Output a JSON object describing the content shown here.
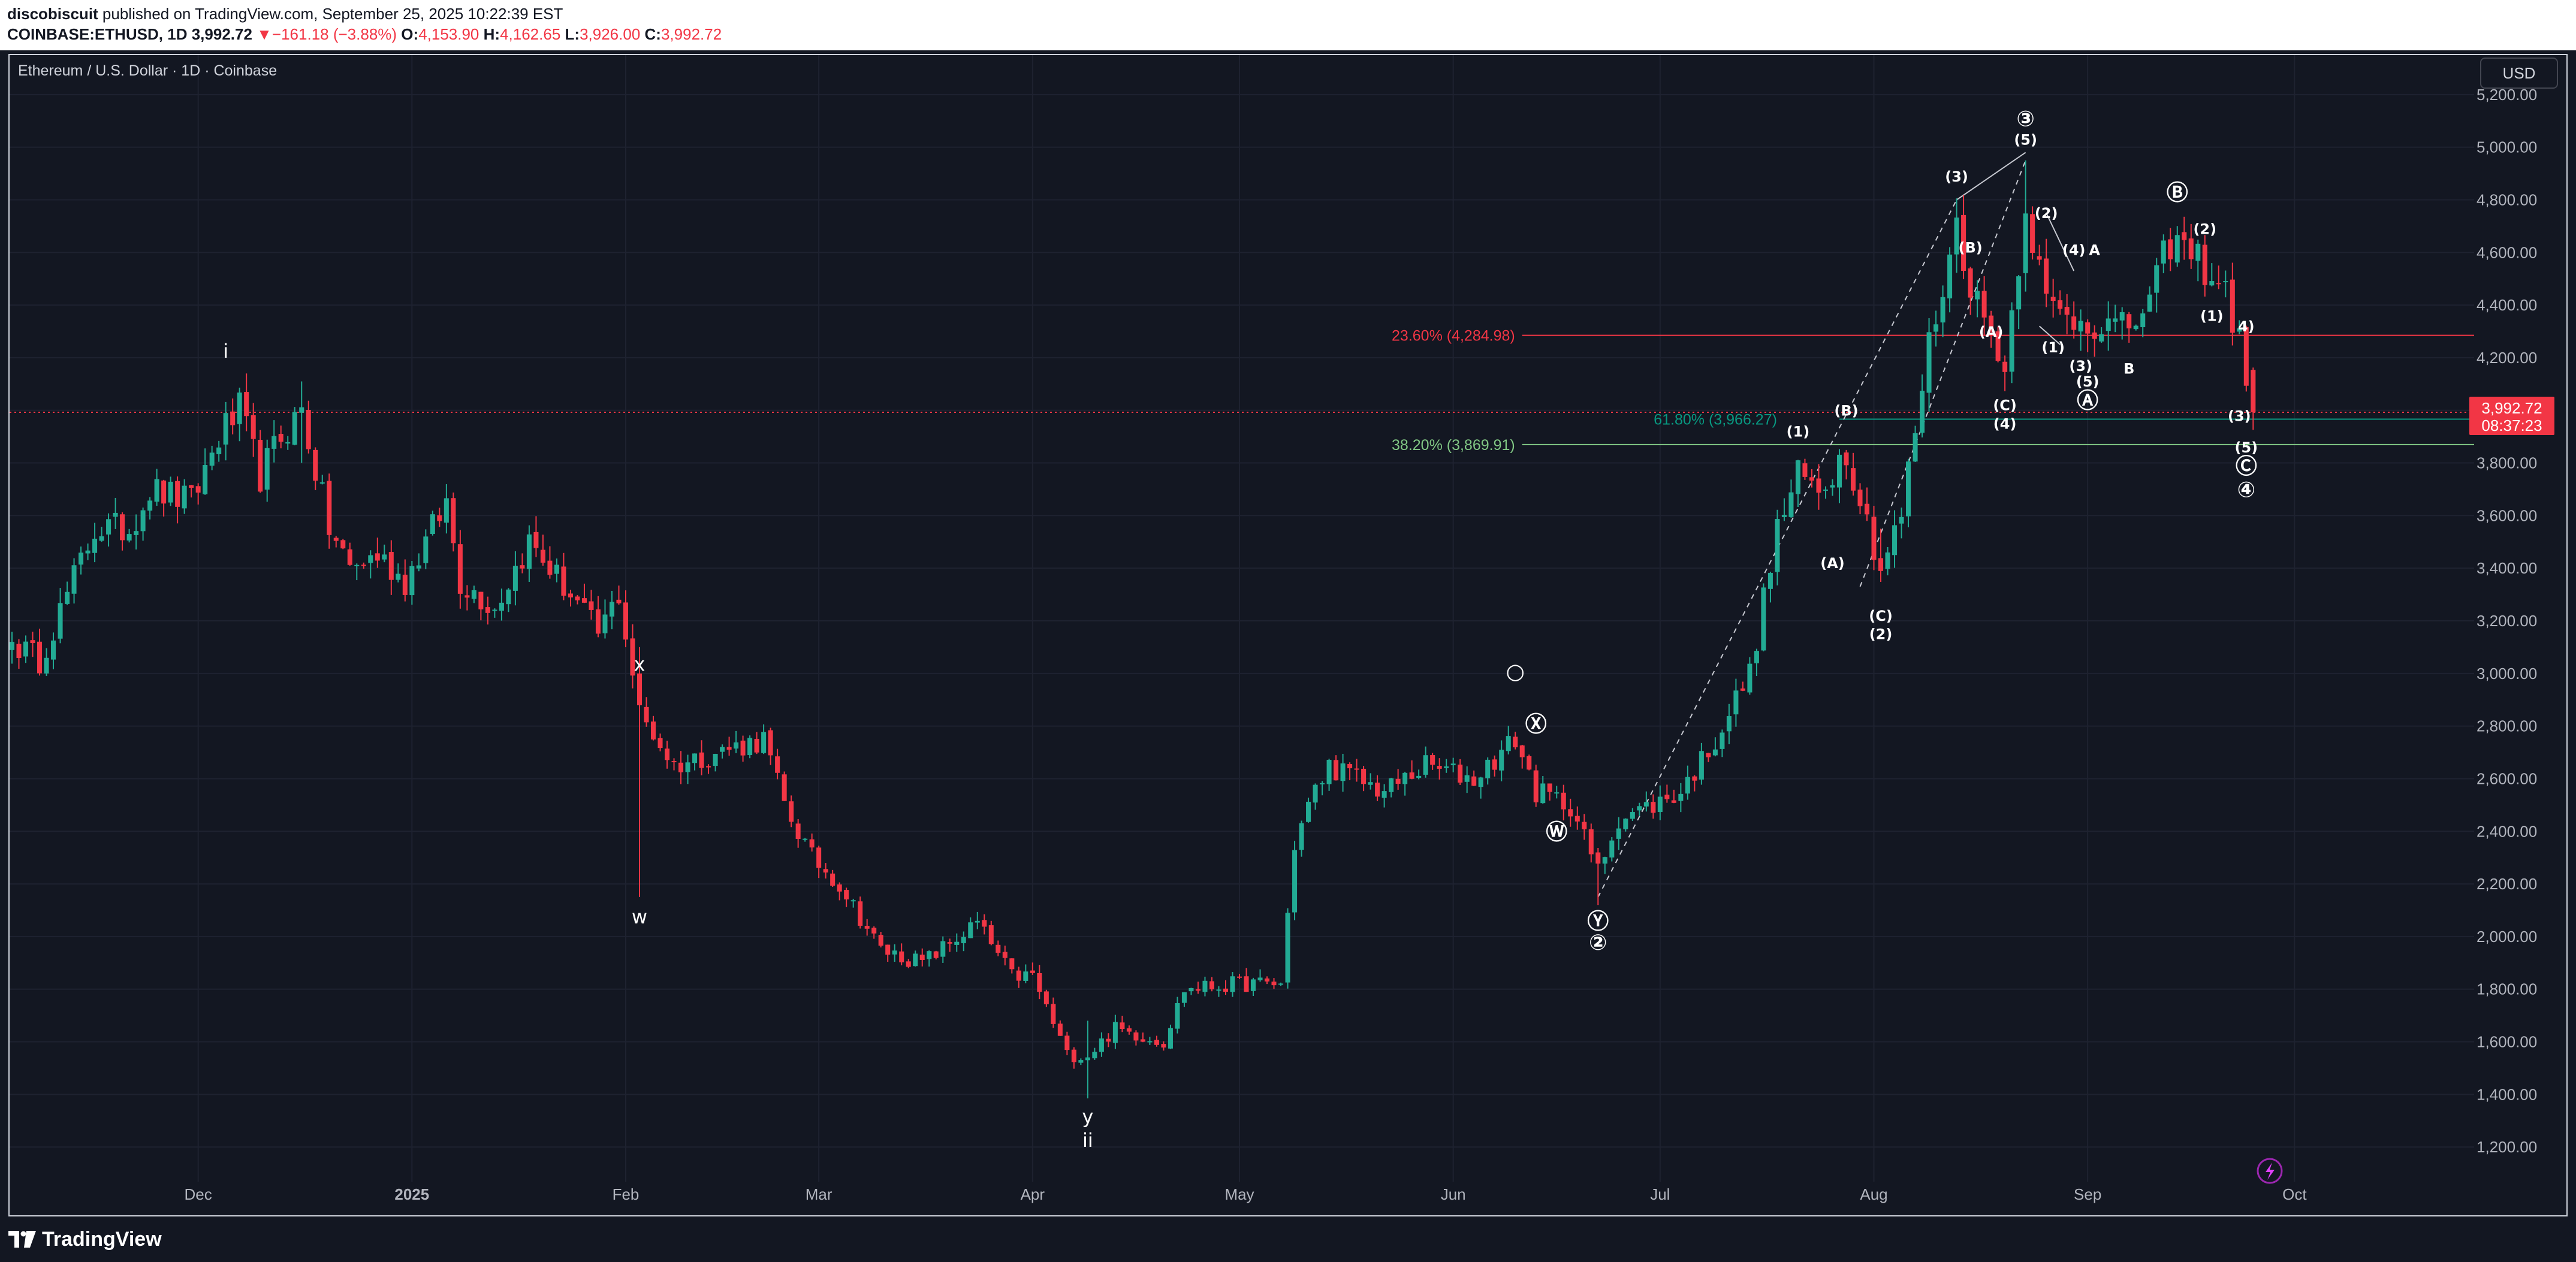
{
  "header": {
    "author": "discobiscuit",
    "published": " published on TradingView.com, September 25, 2025 10:22:39 EST",
    "symbol_line": "COINBASE:ETHUSD, 1D",
    "last": "3,992.72",
    "change_arrow": "▼",
    "change": "−161.18 (−3.88%)",
    "o_label": "O:",
    "o": "4,153.90",
    "h_label": "H:",
    "h": "4,162.65",
    "l_label": "L:",
    "l": "3,926.00",
    "c_label": "C:",
    "c": "3,992.72"
  },
  "chart_title": "Ethereum / U.S. Dollar · 1D · Coinbase",
  "currency_button": "USD",
  "brand": "TradingView",
  "colors": {
    "background": "#131722",
    "up": "#22ab94",
    "down": "#f23645",
    "grid": "#1f2433",
    "text": "#b2b5be"
  },
  "chart_data": {
    "type": "candlestick",
    "title": "Ethereum / U.S. Dollar · 1D · Coinbase",
    "ylim": [
      1050,
      5350
    ],
    "xlim": [
      "2024-11-04",
      "2025-10-26"
    ],
    "y_ticks": [
      "1,200.00",
      "1,400.00",
      "1,600.00",
      "1,800.00",
      "2,000.00",
      "2,200.00",
      "2,400.00",
      "2,600.00",
      "2,800.00",
      "3,000.00",
      "3,200.00",
      "3,400.00",
      "3,600.00",
      "3,800.00",
      "4,000.00",
      "4,200.00",
      "4,400.00",
      "4,600.00",
      "4,800.00",
      "5,000.00",
      "5,200.00"
    ],
    "x_ticks": [
      {
        "date": "2024-12-01",
        "label": "Dec"
      },
      {
        "date": "2025-01-01",
        "label": "2025"
      },
      {
        "date": "2025-02-01",
        "label": "Feb"
      },
      {
        "date": "2025-03-01",
        "label": "Mar"
      },
      {
        "date": "2025-04-01",
        "label": "Apr"
      },
      {
        "date": "2025-05-01",
        "label": "May"
      },
      {
        "date": "2025-06-01",
        "label": "Jun"
      },
      {
        "date": "2025-07-01",
        "label": "Jul"
      },
      {
        "date": "2025-08-01",
        "label": "Aug"
      },
      {
        "date": "2025-09-01",
        "label": "Sep"
      },
      {
        "date": "2025-10-01",
        "label": "Oct"
      }
    ],
    "start_date": "2024-11-04",
    "anchors": [
      [
        "2024-11-04",
        3120
      ],
      [
        "2024-11-08",
        3050
      ],
      [
        "2024-11-12",
        3300
      ],
      [
        "2024-11-16",
        3550
      ],
      [
        "2024-11-21",
        3550
      ],
      [
        "2024-11-24",
        3700
      ],
      [
        "2024-11-30",
        3650
      ],
      [
        "2024-12-04",
        3900
      ],
      [
        "2024-12-07",
        4000
      ],
      [
        "2024-12-10",
        3750
      ],
      [
        "2024-12-13",
        3900
      ],
      [
        "2024-12-16",
        4000
      ],
      [
        "2024-12-20",
        3550
      ],
      [
        "2024-12-23",
        3400
      ],
      [
        "2024-12-27",
        3450
      ],
      [
        "2024-12-31",
        3350
      ],
      [
        "2025-01-06",
        3650
      ],
      [
        "2025-01-08",
        3350
      ],
      [
        "2025-01-13",
        3250
      ],
      [
        "2025-01-18",
        3500
      ],
      [
        "2025-01-24",
        3300
      ],
      [
        "2025-01-28",
        3150
      ],
      [
        "2025-01-31",
        3300
      ],
      [
        "2025-02-03",
        2850
      ],
      [
        "2025-02-08",
        2650
      ],
      [
        "2025-02-14",
        2700
      ],
      [
        "2025-02-21",
        2750
      ],
      [
        "2025-02-24",
        2500
      ],
      [
        "2025-02-28",
        2300
      ],
      [
        "2025-03-04",
        2200
      ],
      [
        "2025-03-10",
        1950
      ],
      [
        "2025-03-16",
        1900
      ],
      [
        "2025-03-24",
        2050
      ],
      [
        "2025-03-29",
        1850
      ],
      [
        "2025-04-01",
        1850
      ],
      [
        "2025-04-06",
        1550
      ],
      [
        "2025-04-09",
        1550
      ],
      [
        "2025-04-13",
        1650
      ],
      [
        "2025-04-20",
        1600
      ],
      [
        "2025-04-23",
        1800
      ],
      [
        "2025-05-01",
        1820
      ],
      [
        "2025-05-07",
        1820
      ],
      [
        "2025-05-09",
        2350
      ],
      [
        "2025-05-11",
        2500
      ],
      [
        "2025-05-14",
        2650
      ],
      [
        "2025-05-22",
        2550
      ],
      [
        "2025-05-28",
        2650
      ],
      [
        "2025-06-04",
        2600
      ],
      [
        "2025-06-10",
        2750
      ],
      [
        "2025-06-13",
        2550
      ],
      [
        "2025-06-18",
        2500
      ],
      [
        "2025-06-22",
        2250
      ],
      [
        "2025-06-25",
        2450
      ],
      [
        "2025-06-30",
        2500
      ],
      [
        "2025-07-04",
        2550
      ],
      [
        "2025-07-09",
        2750
      ],
      [
        "2025-07-14",
        3000
      ],
      [
        "2025-07-18",
        3550
      ],
      [
        "2025-07-21",
        3750
      ],
      [
        "2025-07-24",
        3700
      ],
      [
        "2025-07-28",
        3850
      ],
      [
        "2025-08-02",
        3400
      ],
      [
        "2025-08-05",
        3600
      ],
      [
        "2025-08-09",
        4250
      ],
      [
        "2025-08-13",
        4700
      ],
      [
        "2025-08-16",
        4400
      ],
      [
        "2025-08-19",
        4250
      ],
      [
        "2025-08-20",
        4150
      ],
      [
        "2025-08-23",
        4800
      ],
      [
        "2025-08-26",
        4400
      ],
      [
        "2025-08-29",
        4350
      ],
      [
        "2025-09-01",
        4350
      ],
      [
        "2025-09-06",
        4300
      ],
      [
        "2025-09-10",
        4400
      ],
      [
        "2025-09-13",
        4650
      ],
      [
        "2025-09-18",
        4550
      ],
      [
        "2025-09-21",
        4450
      ],
      [
        "2025-09-24",
        4150
      ],
      [
        "2025-09-25",
        3993
      ]
    ],
    "wicks": [
      {
        "date": "2025-02-03",
        "high": 3100,
        "low": 2150
      },
      {
        "date": "2024-12-16",
        "high": 4110,
        "low": 3800
      },
      {
        "date": "2025-04-09",
        "high": 1680,
        "low": 1385
      },
      {
        "date": "2025-06-22",
        "high": 2300,
        "low": 2120
      },
      {
        "date": "2025-08-02",
        "high": 3550,
        "low": 3360
      },
      {
        "date": "2025-08-23",
        "high": 4950,
        "low": 4700
      }
    ],
    "last_price": 3992.72,
    "last_price_label": "3,992.72",
    "countdown": "08:37:23",
    "levels": [
      {
        "price": 4284.98,
        "label": "23.60% (4,284.98)",
        "color": "#f23645",
        "x1": "2025-06-11",
        "label_x": "2025-06-11"
      },
      {
        "price": 3966.27,
        "label": "61.80% (3,966.27)",
        "color": "#089981",
        "x1": "2025-07-27",
        "label_x": "2025-07-19"
      },
      {
        "price": 3869.91,
        "label": "38.20% (3,869.91)",
        "color": "#81c784",
        "x1": "2025-06-11",
        "label_x": "2025-06-11"
      }
    ],
    "trendlines": [
      {
        "from": [
          "2025-06-22",
          2150
        ],
        "to": [
          "2025-08-13",
          4800
        ],
        "dashed": true
      },
      {
        "from": [
          "2025-07-30",
          3330
        ],
        "to": [
          "2025-08-23",
          4950
        ],
        "dashed": true
      },
      {
        "from": [
          "2025-08-23",
          4980
        ],
        "to": [
          "2025-08-13",
          4800
        ],
        "dashed": false
      },
      {
        "from": [
          "2025-08-26",
          4750
        ],
        "to": [
          "2025-08-30",
          4530
        ],
        "dashed": false
      },
      {
        "from": [
          "2025-08-25",
          4320
        ],
        "to": [
          "2025-08-28",
          4250
        ],
        "dashed": false
      }
    ],
    "annotations": [
      {
        "text": "i",
        "date": "2024-12-05",
        "price": 4200
      },
      {
        "text": "w",
        "date": "2025-02-03",
        "price": 2050
      },
      {
        "text": "x",
        "date": "2025-02-03",
        "price": 3010
      },
      {
        "text": "y",
        "date": "2025-04-09",
        "price": 1290
      },
      {
        "text": "ii",
        "date": "2025-04-09",
        "price": 1200
      },
      {
        "text": "○",
        "date": "2025-06-10",
        "price": 2980
      },
      {
        "text": "Ⓧ",
        "date": "2025-06-13",
        "price": 2780
      },
      {
        "text": "Ⓦ",
        "date": "2025-06-16",
        "price": 2370
      },
      {
        "text": "Ⓨ",
        "date": "2025-06-22",
        "price": 2030
      },
      {
        "text": "②",
        "date": "2025-06-22",
        "price": 1950
      },
      {
        "text": "(1)",
        "date": "2025-07-21",
        "price": 3900
      },
      {
        "text": "(B)",
        "date": "2025-07-28",
        "price": 3980
      },
      {
        "text": "(A)",
        "date": "2025-07-26",
        "price": 3400
      },
      {
        "text": "(C)",
        "date": "2025-08-02",
        "price": 3200
      },
      {
        "text": "(2)",
        "date": "2025-08-02",
        "price": 3130
      },
      {
        "text": "(3)",
        "date": "2025-08-13",
        "price": 4870
      },
      {
        "text": "(B)",
        "date": "2025-08-15",
        "price": 4600
      },
      {
        "text": "(A)",
        "date": "2025-08-18",
        "price": 4280
      },
      {
        "text": "(C)",
        "date": "2025-08-20",
        "price": 4000
      },
      {
        "text": "(4)",
        "date": "2025-08-20",
        "price": 3930
      },
      {
        "text": "③",
        "date": "2025-08-23",
        "price": 5080
      },
      {
        "text": "(5)",
        "date": "2025-08-23",
        "price": 5010
      },
      {
        "text": "(2)",
        "date": "2025-08-26",
        "price": 4730
      },
      {
        "text": "(4)",
        "date": "2025-08-30",
        "price": 4590
      },
      {
        "text": "A",
        "date": "2025-09-02",
        "price": 4590
      },
      {
        "text": "(1)",
        "date": "2025-08-27",
        "price": 4220
      },
      {
        "text": "(3)",
        "date": "2025-08-31",
        "price": 4150
      },
      {
        "text": "(5)",
        "date": "2025-09-01",
        "price": 4090
      },
      {
        "text": "Ⓐ",
        "date": "2025-09-01",
        "price": 4010
      },
      {
        "text": "B",
        "date": "2025-09-07",
        "price": 4140
      },
      {
        "text": "Ⓑ",
        "date": "2025-09-14",
        "price": 4800
      },
      {
        "text": "(2)",
        "date": "2025-09-18",
        "price": 4670
      },
      {
        "text": "(1)",
        "date": "2025-09-19",
        "price": 4340
      },
      {
        "text": "4)",
        "date": "2025-09-24",
        "price": 4300
      },
      {
        "text": "(3)",
        "date": "2025-09-23",
        "price": 3960
      },
      {
        "text": "(5)",
        "date": "2025-09-24",
        "price": 3840
      },
      {
        "text": "Ⓒ",
        "date": "2025-09-24",
        "price": 3760
      },
      {
        "text": "④",
        "date": "2025-09-24",
        "price": 3670
      }
    ]
  }
}
